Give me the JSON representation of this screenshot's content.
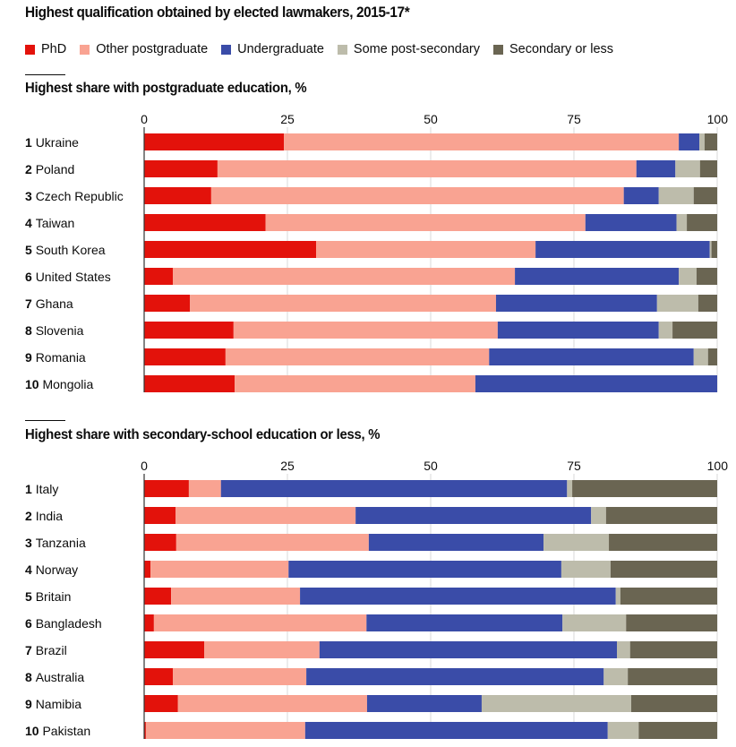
{
  "title": "Highest qualification obtained by elected lawmakers, 2015-17*",
  "legend": [
    {
      "key": "phd",
      "label": "PhD",
      "color": "#e3120b"
    },
    {
      "key": "other_postgraduate",
      "label": "Other postgraduate",
      "color": "#f9a392"
    },
    {
      "key": "undergraduate",
      "label": "Undergraduate",
      "color": "#3a4ca8"
    },
    {
      "key": "some_post_secondary",
      "label": "Some post-secondary",
      "color": "#bdbcab"
    },
    {
      "key": "secondary_or_less",
      "label": "Secondary or less",
      "color": "#6a6552"
    }
  ],
  "chart_data": [
    {
      "type": "bar",
      "orientation": "horizontal",
      "stacked": true,
      "title": "Highest share with postgraduate education, %",
      "xlim": [
        0,
        100
      ],
      "xticks": [
        0,
        25,
        50,
        75,
        100
      ],
      "grid": true,
      "categories": [
        {
          "rank": "1",
          "name": "Ukraine"
        },
        {
          "rank": "2",
          "name": "Poland"
        },
        {
          "rank": "3",
          "name": "Czech Republic"
        },
        {
          "rank": "4",
          "name": "Taiwan"
        },
        {
          "rank": "5",
          "name": "South Korea"
        },
        {
          "rank": "6",
          "name": "United States"
        },
        {
          "rank": "7",
          "name": "Ghana"
        },
        {
          "rank": "8",
          "name": "Slovenia"
        },
        {
          "rank": "9",
          "name": "Romania"
        },
        {
          "rank": "10",
          "name": "Mongolia"
        }
      ],
      "series": [
        {
          "name": "PhD",
          "values": [
            24.4,
            12.8,
            11.7,
            21.2,
            30.0,
            5.0,
            8.0,
            15.6,
            14.2,
            15.8
          ]
        },
        {
          "name": "Other postgraduate",
          "values": [
            68.9,
            73.1,
            72.0,
            55.8,
            38.3,
            59.7,
            53.4,
            46.1,
            46.0,
            42.0
          ]
        },
        {
          "name": "Undergraduate",
          "values": [
            3.6,
            6.8,
            6.1,
            15.9,
            30.4,
            28.6,
            28.1,
            28.1,
            35.7,
            42.2
          ]
        },
        {
          "name": "Some post-secondary",
          "values": [
            0.9,
            4.3,
            6.1,
            1.8,
            0.3,
            3.1,
            7.2,
            2.4,
            2.5,
            0.0
          ]
        },
        {
          "name": "Secondary or less",
          "values": [
            2.2,
            3.0,
            4.1,
            5.3,
            1.0,
            3.6,
            3.3,
            7.8,
            1.6,
            0.0
          ]
        }
      ]
    },
    {
      "type": "bar",
      "orientation": "horizontal",
      "stacked": true,
      "title": "Highest share with secondary-school education or less, %",
      "xlim": [
        0,
        100
      ],
      "xticks": [
        0,
        25,
        50,
        75,
        100
      ],
      "grid": true,
      "categories": [
        {
          "rank": "1",
          "name": "Italy"
        },
        {
          "rank": "2",
          "name": "India"
        },
        {
          "rank": "3",
          "name": "Tanzania"
        },
        {
          "rank": "4",
          "name": "Norway"
        },
        {
          "rank": "5",
          "name": "Britain"
        },
        {
          "rank": "6",
          "name": "Bangladesh"
        },
        {
          "rank": "7",
          "name": "Brazil"
        },
        {
          "rank": "8",
          "name": "Australia"
        },
        {
          "rank": "9",
          "name": "Namibia"
        },
        {
          "rank": "10",
          "name": "Pakistan"
        }
      ],
      "series": [
        {
          "name": "PhD",
          "values": [
            7.8,
            5.5,
            5.6,
            1.1,
            4.7,
            1.7,
            10.5,
            5.0,
            5.9,
            0.3
          ]
        },
        {
          "name": "Other postgraduate",
          "values": [
            5.6,
            31.4,
            33.6,
            24.1,
            22.5,
            37.1,
            20.1,
            23.3,
            33.0,
            27.8
          ]
        },
        {
          "name": "Undergraduate",
          "values": [
            60.4,
            41.1,
            30.5,
            47.6,
            55.1,
            34.2,
            51.9,
            51.9,
            20.0,
            52.8
          ]
        },
        {
          "name": "Some post-secondary",
          "values": [
            0.9,
            2.6,
            11.4,
            8.6,
            0.8,
            11.1,
            2.3,
            4.2,
            26.1,
            5.4
          ]
        },
        {
          "name": "Secondary or less",
          "values": [
            25.3,
            19.4,
            18.9,
            18.6,
            16.9,
            15.9,
            15.2,
            15.6,
            15.0,
            13.7
          ]
        }
      ]
    }
  ]
}
